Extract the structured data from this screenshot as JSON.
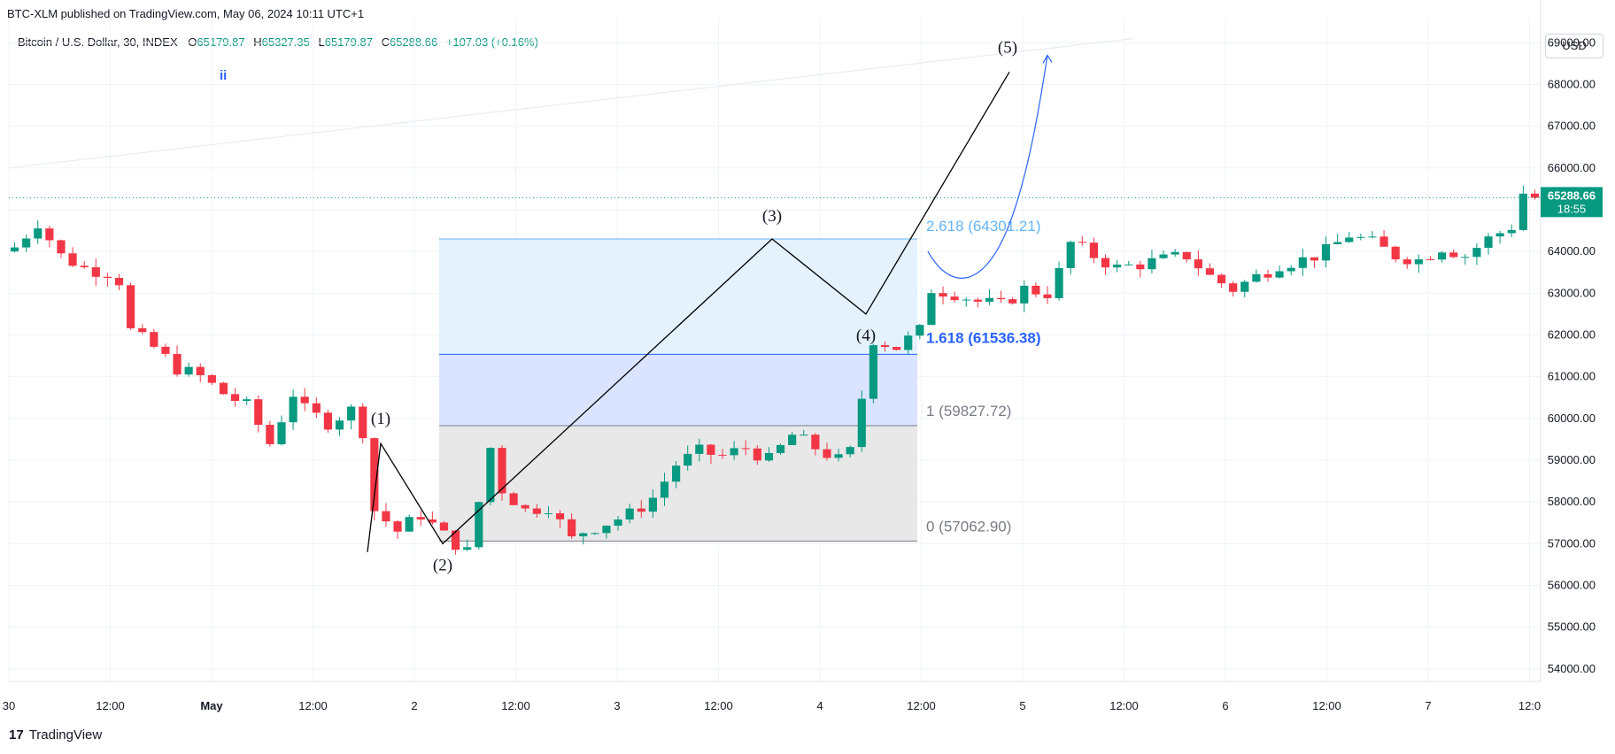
{
  "header": {
    "publisher_line": "BTC-XLM published on TradingView.com, May 06, 2024 10:11 UTC+1",
    "symbol": "Bitcoin / U.S. Dollar, 30, INDEX",
    "open_label": "O",
    "open": "65179.87",
    "high_label": "H",
    "high": "65327.35",
    "low_label": "L",
    "low": "65179.87",
    "close_label": "C",
    "close": "65288.66",
    "change": "+107.03 (+0.16%)",
    "currency": "USD",
    "indicator_mark": "ii"
  },
  "footer": {
    "brand_logo": "17",
    "brand_name": "TradingView"
  },
  "price_tag": {
    "price": "65288.66",
    "countdown": "18:55"
  },
  "colors": {
    "up": "#089981",
    "down": "#f23645",
    "grid": "#f0f3fa",
    "fib_top_fill": "#e3f2fd",
    "fib_mid_fill": "#dbe4ff",
    "fib_bottom_fill": "#e8e8e8",
    "fib_2618": "#64b5f6",
    "fib_1618": "#2962ff",
    "fib_1": "#787b86",
    "fib_0": "#787b86",
    "wave_line": "#000000",
    "projection": "#2962ff"
  },
  "chart_data": {
    "type": "candlestick",
    "title": "Bitcoin / U.S. Dollar, 30, INDEX",
    "ylim": [
      53700,
      69600
    ],
    "y_ticks": [
      "54000.00",
      "55000.00",
      "56000.00",
      "57000.00",
      "58000.00",
      "59000.00",
      "60000.00",
      "61000.00",
      "62000.00",
      "63000.00",
      "64000.00",
      "65000.00",
      "66000.00",
      "67000.00",
      "68000.00",
      "69000.00"
    ],
    "x_ticks": [
      "30",
      "12:00",
      "May",
      "12:00",
      "2",
      "12:00",
      "3",
      "12:00",
      "4",
      "12:00",
      "5",
      "12:00",
      "6",
      "12:00",
      "7",
      "12:0"
    ],
    "last_price": 65288.66,
    "close_path": [
      [
        0,
        64100
      ],
      [
        2,
        64700
      ],
      [
        4,
        63900
      ],
      [
        6,
        63600
      ],
      [
        8,
        63500
      ],
      [
        9,
        63300
      ],
      [
        10,
        62100
      ],
      [
        12,
        61700
      ],
      [
        14,
        61200
      ],
      [
        16,
        61000
      ],
      [
        18,
        60600
      ],
      [
        20,
        60300
      ],
      [
        22,
        59400
      ],
      [
        23,
        60000
      ],
      [
        24,
        60600
      ],
      [
        25,
        60200
      ],
      [
        27,
        59900
      ],
      [
        29,
        60200
      ],
      [
        30,
        59700
      ],
      [
        31,
        57800
      ],
      [
        33,
        57300
      ],
      [
        35,
        57700
      ],
      [
        37,
        57200
      ],
      [
        39,
        56800
      ],
      [
        40,
        58000
      ],
      [
        41,
        59300
      ],
      [
        42,
        58300
      ],
      [
        44,
        57800
      ],
      [
        46,
        57900
      ],
      [
        47,
        57500
      ],
      [
        48,
        57100
      ],
      [
        49,
        57300
      ],
      [
        51,
        57500
      ],
      [
        53,
        57700
      ],
      [
        55,
        58100
      ],
      [
        57,
        58900
      ],
      [
        59,
        59200
      ],
      [
        61,
        59100
      ],
      [
        63,
        59300
      ],
      [
        65,
        59000
      ],
      [
        67,
        59600
      ],
      [
        69,
        59300
      ],
      [
        71,
        59000
      ],
      [
        72,
        59200
      ],
      [
        73,
        60500
      ],
      [
        74,
        61900
      ],
      [
        76,
        61700
      ],
      [
        78,
        62100
      ],
      [
        79,
        63100
      ],
      [
        81,
        63000
      ],
      [
        83,
        62800
      ],
      [
        85,
        62700
      ],
      [
        87,
        63100
      ],
      [
        89,
        63000
      ],
      [
        90,
        63500
      ],
      [
        91,
        64200
      ],
      [
        93,
        63900
      ],
      [
        95,
        63600
      ],
      [
        97,
        63700
      ],
      [
        99,
        63800
      ],
      [
        101,
        63900
      ],
      [
        103,
        63400
      ],
      [
        105,
        63100
      ],
      [
        107,
        63400
      ],
      [
        109,
        63700
      ],
      [
        111,
        63800
      ],
      [
        113,
        64000
      ],
      [
        115,
        64400
      ],
      [
        117,
        64200
      ],
      [
        119,
        63900
      ],
      [
        121,
        63800
      ],
      [
        123,
        64100
      ],
      [
        125,
        63900
      ],
      [
        127,
        64300
      ],
      [
        129,
        64600
      ],
      [
        130,
        65400
      ],
      [
        131,
        65288.66
      ]
    ],
    "wave_points": [
      {
        "label": "(1)",
        "price": 59400
      },
      {
        "label": "(2)",
        "price": 57000
      },
      {
        "label": "(3)",
        "price": 64300
      },
      {
        "label": "(4)",
        "price": 62500
      },
      {
        "label": "(5)",
        "price": 68300
      }
    ],
    "fib_levels": [
      {
        "ratio": "2.618",
        "price": 64301.21,
        "label": "2.618 (64301.21)"
      },
      {
        "ratio": "1.618",
        "price": 61536.38,
        "label": "1.618 (61536.38)"
      },
      {
        "ratio": "1",
        "price": 59827.72,
        "label": "1 (59827.72)"
      },
      {
        "ratio": "0",
        "price": 57062.9,
        "label": "0 (57062.90)"
      }
    ]
  }
}
